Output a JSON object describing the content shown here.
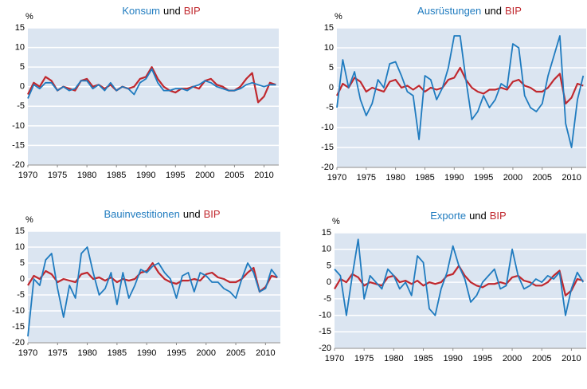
{
  "chart_data": [
    {
      "type": "line",
      "title_connector": "und",
      "y_label": "%",
      "x": [
        1970,
        1971,
        1972,
        1973,
        1974,
        1975,
        1976,
        1977,
        1978,
        1979,
        1980,
        1981,
        1982,
        1983,
        1984,
        1985,
        1986,
        1987,
        1988,
        1989,
        1990,
        1991,
        1992,
        1993,
        1994,
        1995,
        1996,
        1997,
        1998,
        1999,
        2000,
        2001,
        2002,
        2003,
        2004,
        2005,
        2006,
        2007,
        2008,
        2009,
        2010,
        2011,
        2012
      ],
      "xlim": [
        1970,
        2012.5
      ],
      "xticks": [
        1970,
        1975,
        1980,
        1985,
        1990,
        1995,
        2000,
        2005,
        2010
      ],
      "ylim": [
        -20,
        15
      ],
      "yticks": [
        -20,
        -15,
        -10,
        -5,
        0,
        5,
        10,
        15
      ],
      "grid": true,
      "series": [
        {
          "name": "Konsum",
          "color": "#1f7bbf",
          "values": [
            -3,
            0.5,
            -0.5,
            1,
            1,
            -1,
            0,
            -1,
            -0.5,
            1.5,
            1.5,
            -0.5,
            0.5,
            -1,
            1,
            -1,
            0,
            -0.5,
            -2,
            1,
            2,
            4.5,
            1,
            -1,
            -1,
            -0.5,
            -0.5,
            -1,
            0,
            0.5,
            1.5,
            1,
            0,
            -0.5,
            -1,
            -1,
            -0.5,
            0.5,
            1,
            0.5,
            0,
            0.5,
            0.5
          ]
        },
        {
          "name": "BIP",
          "color": "#c0282e",
          "values": [
            -2,
            1,
            0,
            2.5,
            1.5,
            -1,
            0,
            -0.5,
            -1,
            1.5,
            2,
            0,
            0.5,
            -0.5,
            0.5,
            -1,
            0,
            -0.5,
            0,
            2,
            2.5,
            5,
            2,
            0,
            -1,
            -1.5,
            -0.5,
            -0.5,
            0,
            -0.5,
            1.5,
            2,
            0.5,
            0,
            -1,
            -1,
            0,
            2,
            3.5,
            -4,
            -2.5,
            1,
            0.5
          ]
        }
      ]
    },
    {
      "type": "line",
      "title_connector": "und",
      "y_label": "%",
      "x": [
        1970,
        1971,
        1972,
        1973,
        1974,
        1975,
        1976,
        1977,
        1978,
        1979,
        1980,
        1981,
        1982,
        1983,
        1984,
        1985,
        1986,
        1987,
        1988,
        1989,
        1990,
        1991,
        1992,
        1993,
        1994,
        1995,
        1996,
        1997,
        1998,
        1999,
        2000,
        2001,
        2002,
        2003,
        2004,
        2005,
        2006,
        2007,
        2008,
        2009,
        2010,
        2011,
        2012
      ],
      "xlim": [
        1970,
        2012.5
      ],
      "xticks": [
        1970,
        1975,
        1980,
        1985,
        1990,
        1995,
        2000,
        2005,
        2010
      ],
      "ylim": [
        -20,
        15
      ],
      "yticks": [
        -20,
        -15,
        -10,
        -5,
        0,
        5,
        10,
        15
      ],
      "grid": true,
      "series": [
        {
          "name": "Ausrüstungen",
          "color": "#1f7bbf",
          "values": [
            -5,
            7,
            0,
            4,
            -3,
            -7,
            -4,
            2,
            0,
            6,
            6.5,
            3,
            -1,
            -2,
            -13,
            3,
            2,
            -3,
            0,
            5,
            13,
            13,
            2,
            -8,
            -6,
            -2,
            -5,
            -3,
            1,
            0,
            11,
            10,
            -2,
            -5,
            -6,
            -4,
            3,
            8,
            13,
            -9,
            -15,
            -3,
            3
          ]
        },
        {
          "name": "BIP",
          "color": "#c0282e",
          "values": [
            -2,
            1,
            0,
            2.5,
            1.5,
            -1,
            0,
            -0.5,
            -1,
            1.5,
            2,
            0,
            0.5,
            -0.5,
            0.5,
            -1,
            0,
            -0.5,
            0,
            2,
            2.5,
            5,
            2,
            0,
            -1,
            -1.5,
            -0.5,
            -0.5,
            0,
            -0.5,
            1.5,
            2,
            0.5,
            0,
            -1,
            -1,
            0,
            2,
            3.5,
            -4,
            -2.5,
            1,
            0.5
          ]
        }
      ]
    },
    {
      "type": "line",
      "title_connector": "und",
      "y_label": "%",
      "x": [
        1970,
        1971,
        1972,
        1973,
        1974,
        1975,
        1976,
        1977,
        1978,
        1979,
        1980,
        1981,
        1982,
        1983,
        1984,
        1985,
        1986,
        1987,
        1988,
        1989,
        1990,
        1991,
        1992,
        1993,
        1994,
        1995,
        1996,
        1997,
        1998,
        1999,
        2000,
        2001,
        2002,
        2003,
        2004,
        2005,
        2006,
        2007,
        2008,
        2009,
        2010,
        2011,
        2012
      ],
      "xlim": [
        1970,
        2012.5
      ],
      "xticks": [
        1970,
        1975,
        1980,
        1985,
        1990,
        1995,
        2000,
        2005,
        2010
      ],
      "ylim": [
        -20,
        15
      ],
      "yticks": [
        -20,
        -15,
        -10,
        -5,
        0,
        5,
        10,
        15
      ],
      "grid": true,
      "series": [
        {
          "name": "Bauinvestitionen",
          "color": "#1f7bbf",
          "values": [
            -18,
            0,
            -2,
            6,
            8,
            -3,
            -12,
            -2,
            -6,
            8,
            10,
            2,
            -5,
            -3,
            2,
            -8,
            2,
            -6,
            -2,
            3,
            2,
            4,
            5,
            2,
            0,
            -6,
            1,
            2,
            -4,
            2,
            1,
            -1,
            -1,
            -3,
            -4,
            -6,
            0,
            5,
            2,
            -4,
            -3,
            3,
            0.5
          ]
        },
        {
          "name": "BIP",
          "color": "#c0282e",
          "values": [
            -2,
            1,
            0,
            2.5,
            1.5,
            -1,
            0,
            -0.5,
            -1,
            1.5,
            2,
            0,
            0.5,
            -0.5,
            0.5,
            -1,
            0,
            -0.5,
            0,
            2,
            2.5,
            5,
            2,
            0,
            -1,
            -1.5,
            -0.5,
            -0.5,
            0,
            -0.5,
            1.5,
            2,
            0.5,
            0,
            -1,
            -1,
            0,
            2,
            3.5,
            -4,
            -2.5,
            1,
            0.5
          ]
        }
      ]
    },
    {
      "type": "line",
      "title_connector": "und",
      "y_label": "%",
      "x": [
        1970,
        1971,
        1972,
        1973,
        1974,
        1975,
        1976,
        1977,
        1978,
        1979,
        1980,
        1981,
        1982,
        1983,
        1984,
        1985,
        1986,
        1987,
        1988,
        1989,
        1990,
        1991,
        1992,
        1993,
        1994,
        1995,
        1996,
        1997,
        1998,
        1999,
        2000,
        2001,
        2002,
        2003,
        2004,
        2005,
        2006,
        2007,
        2008,
        2009,
        2010,
        2011,
        2012
      ],
      "xlim": [
        1970,
        2012.5
      ],
      "xticks": [
        1970,
        1975,
        1980,
        1985,
        1990,
        1995,
        2000,
        2005,
        2010
      ],
      "ylim": [
        -20,
        15
      ],
      "yticks": [
        -20,
        -15,
        -10,
        -5,
        0,
        5,
        10,
        15
      ],
      "grid": true,
      "series": [
        {
          "name": "Exporte",
          "color": "#1f7bbf",
          "values": [
            4,
            2,
            -10,
            2,
            13,
            -5,
            2,
            0,
            -2,
            4,
            2,
            -2,
            0,
            -4,
            8,
            6,
            -8,
            -10,
            -2,
            3,
            11,
            5,
            1,
            -6,
            -4,
            0,
            2,
            4,
            -2,
            -1,
            10,
            2,
            -2,
            -1,
            1,
            0,
            2,
            1,
            3,
            -10,
            -2,
            3,
            0
          ]
        },
        {
          "name": "BIP",
          "color": "#c0282e",
          "values": [
            -2,
            1,
            0,
            2.5,
            1.5,
            -1,
            0,
            -0.5,
            -1,
            1.5,
            2,
            0,
            0.5,
            -0.5,
            0.5,
            -1,
            0,
            -0.5,
            0,
            2,
            2.5,
            5,
            2,
            0,
            -1,
            -1.5,
            -0.5,
            -0.5,
            0,
            -0.5,
            1.5,
            2,
            0.5,
            0,
            -1,
            -1,
            0,
            2,
            3.5,
            -4,
            -2.5,
            1,
            0.5
          ]
        }
      ]
    }
  ]
}
